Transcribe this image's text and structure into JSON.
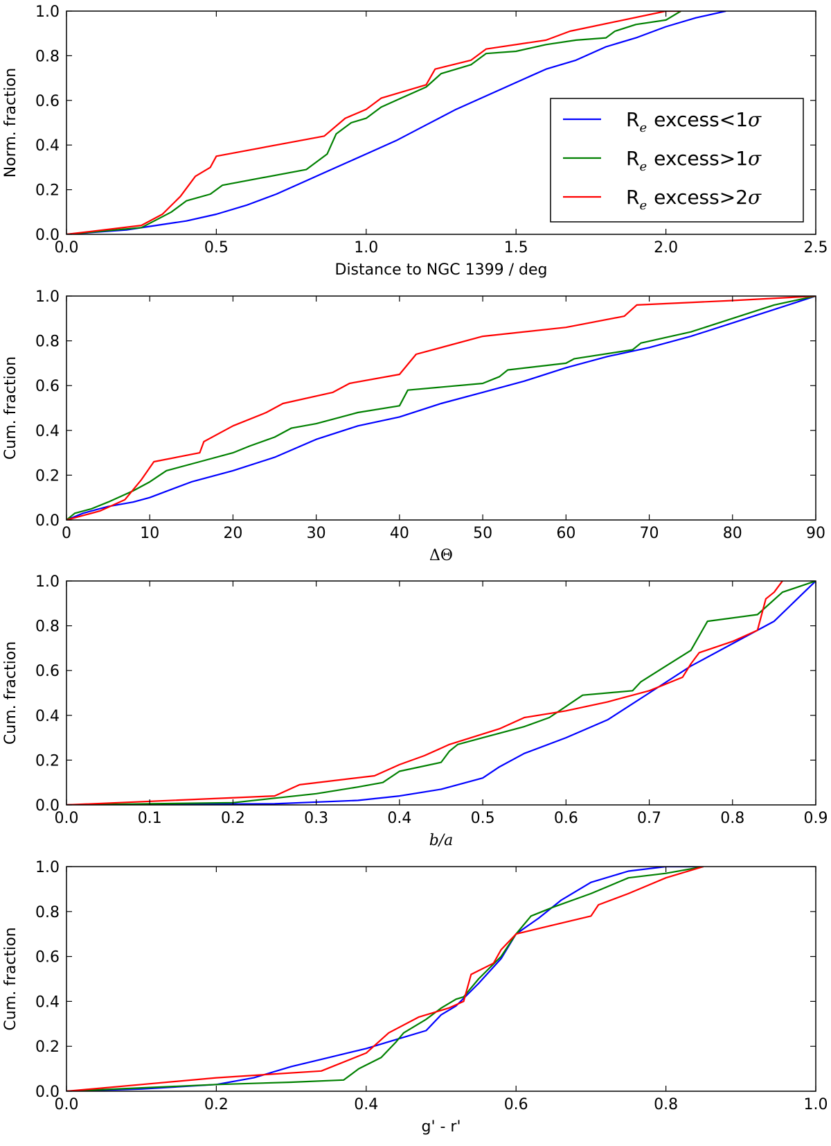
{
  "legend": {
    "entries": [
      {
        "prefix": "R",
        "sub": "e",
        "text": "excess<1",
        "sigma": "σ",
        "color": "#0000ff"
      },
      {
        "prefix": "R",
        "sub": "e",
        "text": "excess>1",
        "sigma": "σ",
        "color": "#008000"
      },
      {
        "prefix": "R",
        "sub": "e",
        "text": "excess>2",
        "sigma": "σ",
        "color": "#ff0000"
      }
    ]
  },
  "chart_data": [
    {
      "type": "line",
      "xlabel": "Distance to NGC 1399 / deg",
      "ylabel": "Norm. fraction",
      "xlim": [
        0,
        2.5
      ],
      "ylim": [
        0,
        1
      ],
      "xticks": [
        0,
        0.5,
        1,
        1.5,
        2,
        2.5
      ],
      "xtick_labels": [
        "0.0",
        "0.5",
        "1.0",
        "1.5",
        "2.0",
        "2.5"
      ],
      "yticks": [
        0,
        0.2,
        0.4,
        0.6,
        0.8,
        1
      ],
      "ytick_labels": [
        "0.0",
        "0.2",
        "0.4",
        "0.6",
        "0.8",
        "1.0"
      ],
      "series": [
        {
          "name": "Re excess<1σ",
          "color": "#0000ff",
          "x": [
            0,
            0.1,
            0.2,
            0.3,
            0.4,
            0.5,
            0.6,
            0.7,
            0.8,
            0.9,
            1.0,
            1.1,
            1.2,
            1.3,
            1.4,
            1.5,
            1.6,
            1.7,
            1.8,
            1.9,
            2.0,
            2.1,
            2.2
          ],
          "y": [
            0,
            0.01,
            0.02,
            0.04,
            0.06,
            0.09,
            0.13,
            0.18,
            0.24,
            0.3,
            0.36,
            0.42,
            0.49,
            0.56,
            0.62,
            0.68,
            0.74,
            0.78,
            0.84,
            0.88,
            0.93,
            0.97,
            1.0
          ]
        },
        {
          "name": "Re excess>1σ",
          "color": "#008000",
          "x": [
            0,
            0.25,
            0.35,
            0.4,
            0.48,
            0.52,
            0.6,
            0.8,
            0.87,
            0.9,
            0.95,
            1.0,
            1.05,
            1.1,
            1.2,
            1.25,
            1.35,
            1.4,
            1.5,
            1.6,
            1.7,
            1.8,
            1.83,
            1.9,
            2.0,
            2.05
          ],
          "y": [
            0,
            0.03,
            0.1,
            0.15,
            0.18,
            0.22,
            0.24,
            0.29,
            0.36,
            0.45,
            0.5,
            0.52,
            0.57,
            0.6,
            0.66,
            0.72,
            0.76,
            0.81,
            0.82,
            0.85,
            0.87,
            0.88,
            0.91,
            0.94,
            0.96,
            1.0
          ]
        },
        {
          "name": "Re excess>2σ",
          "color": "#ff0000",
          "x": [
            0,
            0.25,
            0.32,
            0.38,
            0.43,
            0.48,
            0.5,
            0.86,
            0.93,
            1.0,
            1.05,
            1.2,
            1.23,
            1.35,
            1.4,
            1.6,
            1.68,
            2.0,
            2.05
          ],
          "y": [
            0,
            0.04,
            0.09,
            0.17,
            0.26,
            0.3,
            0.35,
            0.44,
            0.52,
            0.56,
            0.61,
            0.67,
            0.74,
            0.78,
            0.83,
            0.87,
            0.91,
            1.0,
            1.0
          ]
        }
      ]
    },
    {
      "type": "line",
      "xlabel": "ΔΘ",
      "ylabel": "Cum. fraction",
      "xlim": [
        0,
        90
      ],
      "ylim": [
        0,
        1
      ],
      "xticks": [
        0,
        10,
        20,
        30,
        40,
        50,
        60,
        70,
        80,
        90
      ],
      "xtick_labels": [
        "0",
        "10",
        "20",
        "30",
        "40",
        "50",
        "60",
        "70",
        "80",
        "90"
      ],
      "yticks": [
        0,
        0.2,
        0.4,
        0.6,
        0.8,
        1
      ],
      "ytick_labels": [
        "0.0",
        "0.2",
        "0.4",
        "0.6",
        "0.8",
        "1.0"
      ],
      "series": [
        {
          "name": "Re excess<1σ",
          "color": "#0000ff",
          "x": [
            0,
            2,
            5,
            8,
            10,
            15,
            20,
            25,
            30,
            35,
            40,
            45,
            50,
            55,
            60,
            65,
            70,
            75,
            80,
            85,
            90
          ],
          "y": [
            0,
            0.03,
            0.06,
            0.08,
            0.1,
            0.17,
            0.22,
            0.28,
            0.36,
            0.42,
            0.46,
            0.52,
            0.57,
            0.62,
            0.68,
            0.73,
            0.77,
            0.82,
            0.88,
            0.94,
            1.0
          ]
        },
        {
          "name": "Re excess>1σ",
          "color": "#008000",
          "x": [
            0,
            1,
            3,
            5,
            8,
            10,
            12,
            16,
            20,
            22,
            25,
            27,
            30,
            35,
            40,
            41,
            50,
            52,
            53,
            60,
            61,
            68,
            69,
            75,
            80,
            85,
            90
          ],
          "y": [
            0,
            0.03,
            0.05,
            0.08,
            0.13,
            0.17,
            0.22,
            0.26,
            0.3,
            0.33,
            0.37,
            0.41,
            0.43,
            0.48,
            0.51,
            0.58,
            0.61,
            0.64,
            0.67,
            0.7,
            0.72,
            0.76,
            0.79,
            0.84,
            0.9,
            0.96,
            1.0
          ]
        },
        {
          "name": "Re excess>2σ",
          "color": "#ff0000",
          "x": [
            0,
            4,
            7,
            9,
            10.5,
            16,
            16.5,
            20,
            24,
            26,
            32,
            34,
            40,
            42,
            50,
            60,
            67,
            68.5,
            80,
            90
          ],
          "y": [
            0,
            0.04,
            0.09,
            0.18,
            0.26,
            0.3,
            0.35,
            0.42,
            0.48,
            0.52,
            0.57,
            0.61,
            0.65,
            0.74,
            0.82,
            0.86,
            0.91,
            0.96,
            0.98,
            1.0
          ]
        }
      ]
    },
    {
      "type": "line",
      "xlabel": "b/a",
      "ylabel": "Cum. fraction",
      "xlim": [
        0,
        0.9
      ],
      "ylim": [
        0,
        1
      ],
      "xticks": [
        0,
        0.1,
        0.2,
        0.3,
        0.4,
        0.5,
        0.6,
        0.7,
        0.8,
        0.9
      ],
      "xtick_labels": [
        "0.0",
        "0.1",
        "0.2",
        "0.3",
        "0.4",
        "0.5",
        "0.6",
        "0.7",
        "0.8",
        "0.9"
      ],
      "yticks": [
        0,
        0.2,
        0.4,
        0.6,
        0.8,
        1
      ],
      "ytick_labels": [
        "0.0",
        "0.2",
        "0.4",
        "0.6",
        "0.8",
        "1.0"
      ],
      "series": [
        {
          "name": "Re excess<1σ",
          "color": "#0000ff",
          "x": [
            0,
            0.25,
            0.35,
            0.4,
            0.45,
            0.5,
            0.52,
            0.55,
            0.6,
            0.65,
            0.7,
            0.75,
            0.8,
            0.85,
            0.9
          ],
          "y": [
            0,
            0.005,
            0.02,
            0.04,
            0.07,
            0.12,
            0.17,
            0.23,
            0.3,
            0.38,
            0.5,
            0.62,
            0.72,
            0.82,
            1.0
          ]
        },
        {
          "name": "Re excess>1σ",
          "color": "#008000",
          "x": [
            0,
            0.2,
            0.25,
            0.3,
            0.35,
            0.38,
            0.4,
            0.45,
            0.46,
            0.47,
            0.5,
            0.55,
            0.58,
            0.6,
            0.62,
            0.68,
            0.69,
            0.72,
            0.75,
            0.77,
            0.83,
            0.86,
            0.9
          ],
          "y": [
            0,
            0.01,
            0.03,
            0.05,
            0.08,
            0.1,
            0.15,
            0.19,
            0.24,
            0.27,
            0.3,
            0.35,
            0.39,
            0.44,
            0.49,
            0.51,
            0.55,
            0.62,
            0.69,
            0.82,
            0.85,
            0.95,
            1.0
          ]
        },
        {
          "name": "Re excess>2σ",
          "color": "#ff0000",
          "x": [
            0,
            0.25,
            0.28,
            0.37,
            0.4,
            0.43,
            0.46,
            0.52,
            0.55,
            0.6,
            0.65,
            0.7,
            0.74,
            0.75,
            0.76,
            0.8,
            0.83,
            0.84,
            0.85,
            0.86
          ],
          "y": [
            0,
            0.04,
            0.09,
            0.13,
            0.18,
            0.22,
            0.27,
            0.34,
            0.39,
            0.42,
            0.46,
            0.51,
            0.57,
            0.63,
            0.68,
            0.73,
            0.78,
            0.92,
            0.95,
            1.0
          ]
        }
      ]
    },
    {
      "type": "line",
      "xlabel": "g' - r'",
      "ylabel": "Cum. fraction",
      "xlim": [
        0,
        1
      ],
      "ylim": [
        0,
        1
      ],
      "xticks": [
        0,
        0.2,
        0.4,
        0.6,
        0.8,
        1
      ],
      "xtick_labels": [
        "0.0",
        "0.2",
        "0.4",
        "0.6",
        "0.8",
        "1.0"
      ],
      "yticks": [
        0,
        0.2,
        0.4,
        0.6,
        0.8,
        1
      ],
      "ytick_labels": [
        "0.0",
        "0.2",
        "0.4",
        "0.6",
        "0.8",
        "1.0"
      ],
      "series": [
        {
          "name": "Re excess<1σ",
          "color": "#0000ff",
          "x": [
            0,
            0.1,
            0.2,
            0.25,
            0.3,
            0.35,
            0.4,
            0.45,
            0.48,
            0.5,
            0.52,
            0.55,
            0.58,
            0.6,
            0.63,
            0.66,
            0.7,
            0.75,
            0.8,
            0.85
          ],
          "y": [
            0,
            0.01,
            0.03,
            0.06,
            0.11,
            0.15,
            0.19,
            0.24,
            0.27,
            0.34,
            0.38,
            0.48,
            0.59,
            0.7,
            0.77,
            0.85,
            0.93,
            0.98,
            1.0,
            1.0
          ]
        },
        {
          "name": "Re excess>1σ",
          "color": "#008000",
          "x": [
            0,
            0.2,
            0.3,
            0.37,
            0.39,
            0.42,
            0.44,
            0.45,
            0.48,
            0.5,
            0.52,
            0.53,
            0.55,
            0.58,
            0.6,
            0.62,
            0.65,
            0.7,
            0.75,
            0.8,
            0.85
          ],
          "y": [
            0,
            0.03,
            0.04,
            0.05,
            0.1,
            0.15,
            0.22,
            0.26,
            0.32,
            0.37,
            0.41,
            0.42,
            0.5,
            0.6,
            0.7,
            0.78,
            0.82,
            0.88,
            0.95,
            0.97,
            1.0
          ]
        },
        {
          "name": "Re excess>2σ",
          "color": "#ff0000",
          "x": [
            0,
            0.1,
            0.2,
            0.34,
            0.4,
            0.43,
            0.47,
            0.51,
            0.53,
            0.54,
            0.57,
            0.58,
            0.6,
            0.65,
            0.7,
            0.71,
            0.75,
            0.8,
            0.85
          ],
          "y": [
            0,
            0.03,
            0.06,
            0.09,
            0.17,
            0.26,
            0.33,
            0.37,
            0.4,
            0.52,
            0.57,
            0.63,
            0.7,
            0.74,
            0.78,
            0.83,
            0.88,
            0.95,
            1.0
          ]
        }
      ]
    }
  ]
}
